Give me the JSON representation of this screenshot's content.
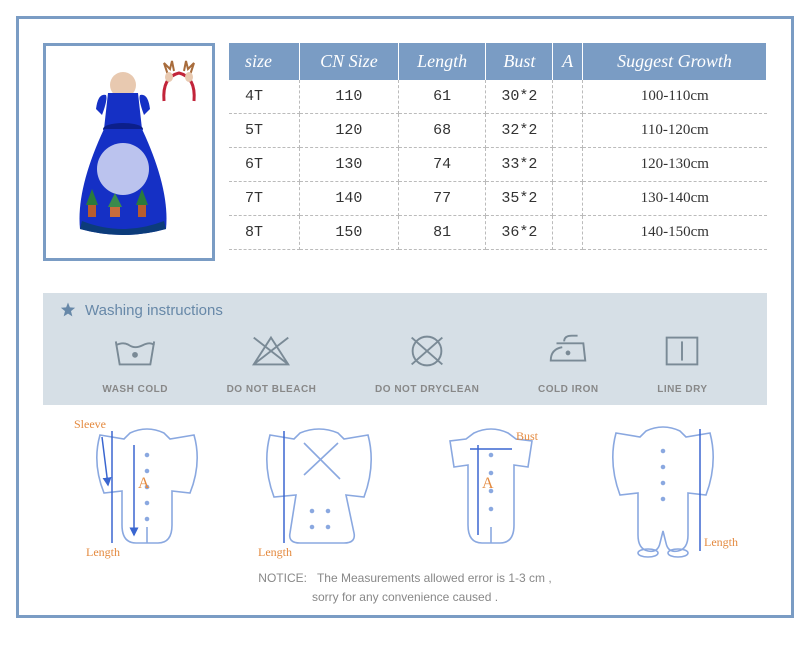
{
  "size_table": {
    "header_bg": "#7a9cc4",
    "header_color": "#ffffff",
    "columns": [
      "size",
      "CN Size",
      "Length",
      "Bust",
      "A",
      "Suggest Growth"
    ],
    "rows": [
      [
        "4T",
        "110",
        "61",
        "30*2",
        "",
        "100-110cm"
      ],
      [
        "5T",
        "120",
        "68",
        "32*2",
        "",
        "110-120cm"
      ],
      [
        "6T",
        "130",
        "74",
        "33*2",
        "",
        "120-130cm"
      ],
      [
        "7T",
        "140",
        "77",
        "35*2",
        "",
        "130-140cm"
      ],
      [
        "8T",
        "150",
        "81",
        "36*2",
        "",
        "140-150cm"
      ]
    ]
  },
  "washing": {
    "title": "Washing instructions",
    "background": "#d6dfe6",
    "title_color": "#6788a8",
    "label_color": "#888888",
    "items": [
      {
        "label": "WASH COLD",
        "icon": "wash-cold"
      },
      {
        "label": "DO NOT BLEACH",
        "icon": "no-bleach"
      },
      {
        "label": "DO NOT DRYCLEAN",
        "icon": "no-dryclean"
      },
      {
        "label": "COLD IRON",
        "icon": "cold-iron"
      },
      {
        "label": "LINE DRY",
        "icon": "line-dry"
      }
    ]
  },
  "diagram": {
    "line_color": "#8aa8e0",
    "label_color": "#e48a3f",
    "labels": {
      "sleeve": "Sleeve",
      "a": "A",
      "length": "Length",
      "bust": "Bust"
    }
  },
  "notice": {
    "prefix": "NOTICE:",
    "line1": "The Measurements allowed error is 1-3 cm ,",
    "line2": "sorry for any convenience caused ."
  },
  "frame_color": "#7a9cc4"
}
